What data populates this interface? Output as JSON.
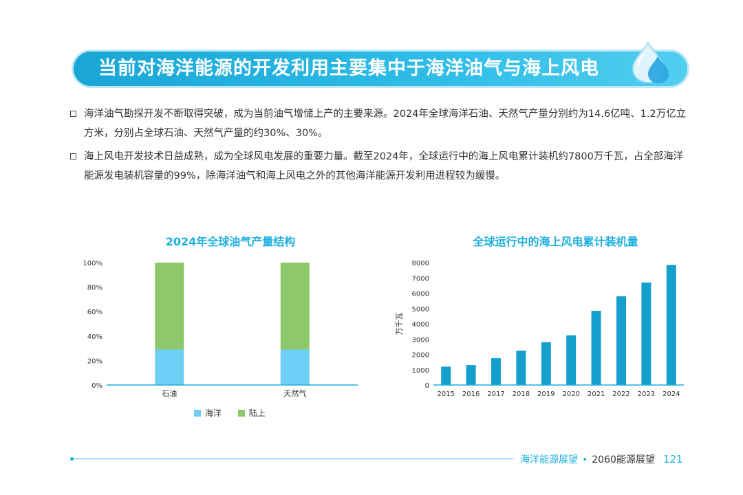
{
  "header": {
    "title": "当前对海洋能源的开发利用主要集中于海洋油气与海上风电"
  },
  "bullets": [
    "海洋油气勘探开发不断取得突破，成为当前油气增储上产的主要来源。2024年全球海洋石油、天然气产量分别约为14.6亿吨、1.2万亿立方米，分别占全球石油、天然气产量的约30%、30%。",
    "海上风电开发技术日益成熟，成为全球风电发展的重要力量。截至2024年，全球运行中的海上风电累计装机约7800万千瓦，占全部海洋能源发电装机容量的99%，除海洋油气和海上风电之外的其他海洋能源开发利用进程较为缓慢。"
  ],
  "colors": {
    "accent": "#1cb0e0",
    "ocean": "#6dcff6",
    "land": "#8dc96b",
    "wind_bar": "#159fcd"
  },
  "chart_data": [
    {
      "type": "bar",
      "stacked": true,
      "title": "2024年全球油气产量结构",
      "categories": [
        "石油",
        "天然气"
      ],
      "series": [
        {
          "name": "海洋",
          "values": [
            29,
            29
          ]
        },
        {
          "name": "陆上",
          "values": [
            71,
            71
          ]
        }
      ],
      "ylim": [
        0,
        100
      ],
      "yticks": [
        "0%",
        "20%",
        "40%",
        "60%",
        "80%",
        "100%"
      ],
      "xlabel": "",
      "ylabel": "",
      "legend": "bottom"
    },
    {
      "type": "bar",
      "title": "全球运行中的海上风电累计装机量",
      "categories": [
        "2015",
        "2016",
        "2017",
        "2018",
        "2019",
        "2020",
        "2021",
        "2022",
        "2023",
        "2024"
      ],
      "values": [
        1200,
        1300,
        1750,
        2250,
        2800,
        3250,
        4850,
        5800,
        6700,
        7850
      ],
      "ylim": [
        0,
        8000
      ],
      "yticks": [
        "0",
        "1000",
        "2000",
        "3000",
        "4000",
        "5000",
        "6000",
        "7000",
        "8000"
      ],
      "xlabel": "",
      "ylabel": "万千瓦"
    }
  ],
  "footer": {
    "book": "海洋能源展望",
    "separator": "•",
    "series": "2060能源展望",
    "page": "121"
  }
}
